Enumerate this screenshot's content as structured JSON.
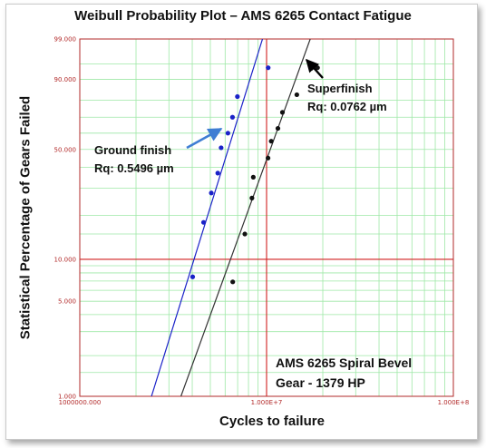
{
  "chart_data": {
    "type": "scatter",
    "title": "Weibull Probability Plot – AMS 6265 Contact Fatigue",
    "xlabel": "Cycles to failure",
    "ylabel": "Statistical Percentage of Gears Failed",
    "x_scale": "log",
    "y_scale": "weibull",
    "xlim": [
      1000000,
      100000000
    ],
    "ylim": [
      1,
      99
    ],
    "x_tick_labels": [
      "1000000.000",
      "1.000E+7",
      "1.000E+8"
    ],
    "y_ticks": [
      {
        "value": 99,
        "label": "99.000"
      },
      {
        "value": 90,
        "label": "90.000"
      },
      {
        "value": 50,
        "label": "50.000"
      },
      {
        "value": 10,
        "label": "10.000"
      },
      {
        "value": 5,
        "label": "5.000"
      },
      {
        "value": 1,
        "label": "1.000"
      }
    ],
    "reference_lines": {
      "x": 10000000,
      "y": 10
    },
    "grid": true,
    "series": [
      {
        "name": "Ground finish",
        "color": "#1a22c8",
        "points": [
          {
            "x": 4020000,
            "y": 7.5
          },
          {
            "x": 4600000,
            "y": 18
          },
          {
            "x": 5060000,
            "y": 28
          },
          {
            "x": 5480000,
            "y": 37
          },
          {
            "x": 5710000,
            "y": 51
          },
          {
            "x": 6210000,
            "y": 60
          },
          {
            "x": 6570000,
            "y": 70
          },
          {
            "x": 6980000,
            "y": 82
          },
          {
            "x": 10200000,
            "y": 94
          }
        ],
        "fit_line": [
          [
            2420000,
            1
          ],
          [
            9510000,
            99
          ]
        ]
      },
      {
        "name": "Superfinish",
        "color": "#111111",
        "points": [
          {
            "x": 6590000,
            "y": 6.9
          },
          {
            "x": 7650000,
            "y": 15
          },
          {
            "x": 8350000,
            "y": 26
          },
          {
            "x": 8490000,
            "y": 35
          },
          {
            "x": 10180000,
            "y": 45
          },
          {
            "x": 10590000,
            "y": 55
          },
          {
            "x": 11500000,
            "y": 63
          },
          {
            "x": 12160000,
            "y": 73
          },
          {
            "x": 14520000,
            "y": 83
          },
          {
            "x": 18740000,
            "y": 94
          }
        ],
        "fit_line": [
          [
            3480000,
            1
          ],
          [
            17130000,
            99
          ]
        ]
      }
    ],
    "annotations": [
      {
        "name": "ground-finish",
        "lines": [
          "Ground finish",
          "Rq: 0.5496 µm"
        ]
      },
      {
        "name": "superfinish",
        "lines": [
          "Superfinish",
          "Rq: 0.0762 µm"
        ]
      },
      {
        "name": "material",
        "lines": [
          "AMS 6265 Spiral Bevel",
          "Gear - 1379 HP"
        ]
      }
    ]
  }
}
